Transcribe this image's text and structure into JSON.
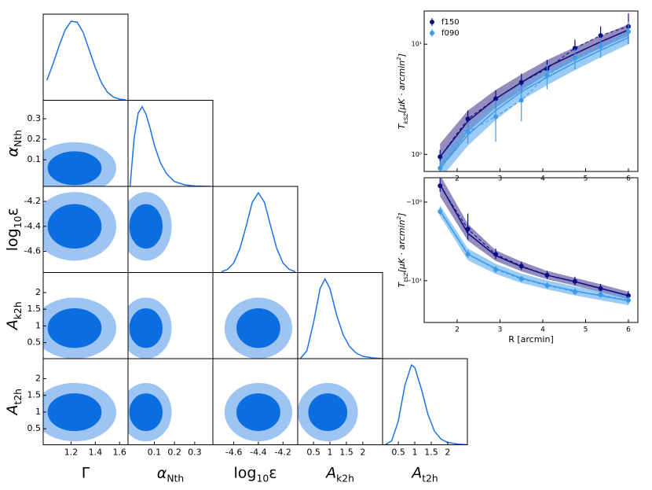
{
  "chart_data": [
    {
      "type": "corner",
      "line_color": "#1a73e8",
      "inner_color": "#0a6de0",
      "outer_color": "#9dc4f2",
      "params": [
        {
          "label": [
            {
              "text": "Γ"
            }
          ],
          "range": [
            0.97,
            1.67
          ],
          "ticks": [
            1.2,
            1.4,
            1.6
          ],
          "x": [
            1.0,
            1.05,
            1.1,
            1.15,
            1.2,
            1.25,
            1.3,
            1.35,
            1.4,
            1.45,
            1.5,
            1.55,
            1.6,
            1.65
          ],
          "values": [
            0.25,
            0.45,
            0.68,
            0.88,
            0.99,
            0.98,
            0.85,
            0.63,
            0.41,
            0.22,
            0.1,
            0.04,
            0.015,
            0.005
          ]
        },
        {
          "label": [
            {
              "text": "α"
            },
            {
              "text": "Nth",
              "sub": true
            }
          ],
          "range": [
            -0.03,
            0.39
          ],
          "ticks": [
            0.1,
            0.2,
            0.3
          ],
          "x": [
            -0.02,
            0,
            0.02,
            0.04,
            0.06,
            0.08,
            0.1,
            0.13,
            0.16,
            0.2,
            0.25,
            0.3,
            0.38
          ],
          "values": [
            0,
            0.6,
            0.92,
            1.0,
            0.9,
            0.72,
            0.52,
            0.3,
            0.16,
            0.06,
            0.02,
            0.005,
            0
          ]
        },
        {
          "label": [
            {
              "text": "log"
            },
            {
              "text": "10",
              "sub": true
            },
            {
              "text": "ε"
            }
          ],
          "range": [
            -4.77,
            -4.08
          ],
          "ticks": [
            -4.6,
            -4.4,
            -4.2
          ],
          "x": [
            -4.7,
            -4.65,
            -4.6,
            -4.55,
            -4.5,
            -4.45,
            -4.4,
            -4.35,
            -4.3,
            -4.25,
            -4.2,
            -4.15,
            -4.1
          ],
          "values": [
            0.01,
            0.04,
            0.12,
            0.3,
            0.58,
            0.88,
            1.0,
            0.88,
            0.58,
            0.3,
            0.12,
            0.04,
            0.01
          ]
        },
        {
          "label": [
            {
              "text": "A"
            },
            {
              "text": "k2h",
              "sub": true
            }
          ],
          "range": [
            0.02,
            2.6
          ],
          "ticks": [
            0.5,
            1.0,
            1.5,
            2.0
          ],
          "x": [
            0.1,
            0.3,
            0.5,
            0.7,
            0.85,
            1.0,
            1.2,
            1.4,
            1.6,
            1.8,
            2.0,
            2.3,
            2.6
          ],
          "values": [
            0,
            0.1,
            0.45,
            0.88,
            1.0,
            0.88,
            0.55,
            0.3,
            0.15,
            0.07,
            0.03,
            0.01,
            0
          ]
        },
        {
          "label": [
            {
              "text": "A"
            },
            {
              "text": "t2h",
              "sub": true
            }
          ],
          "range": [
            0.02,
            2.6
          ],
          "ticks": [
            0.5,
            1.0,
            1.5,
            2.0
          ],
          "x": [
            0.1,
            0.3,
            0.5,
            0.7,
            0.9,
            1.0,
            1.2,
            1.4,
            1.6,
            1.8,
            2.0,
            2.3,
            2.6
          ],
          "values": [
            0,
            0.05,
            0.3,
            0.75,
            1.0,
            0.97,
            0.7,
            0.38,
            0.17,
            0.07,
            0.03,
            0.01,
            0
          ]
        }
      ]
    },
    {
      "type": "errorbar",
      "yscale": "log",
      "legend": "upper left",
      "ylabel": [
        {
          "text": "T"
        },
        {
          "text": "kSZ",
          "sub": true
        },
        {
          "text": "[μK · arcmin"
        },
        {
          "text": "2",
          "sup": true
        },
        {
          "text": "]"
        }
      ],
      "xlim": [
        1.23,
        6.22
      ],
      "xticks": [
        2,
        3,
        4,
        5,
        6
      ],
      "ylim": [
        0.7,
        20
      ],
      "yticks": [
        {
          "value": 1,
          "label": "10⁰"
        },
        {
          "value": 10,
          "label": "10¹"
        }
      ],
      "x": [
        1.6,
        2.25,
        2.9,
        3.5,
        4.1,
        4.75,
        5.35,
        6.0
      ],
      "series": [
        {
          "name": "f150",
          "color": "#0b0b86",
          "band_color": "#4b3f8f",
          "values": [
            0.95,
            2.1,
            3.2,
            4.5,
            6.0,
            9.2,
            12,
            14.5
          ],
          "errors": [
            0.15,
            0.4,
            0.6,
            0.9,
            1.2,
            1.8,
            2.5,
            4.5
          ],
          "model": [
            0.95,
            2.0,
            3.2,
            4.5,
            6.2,
            8.2,
            10.5,
            13.5
          ],
          "band_low": [
            0.72,
            1.6,
            2.65,
            3.8,
            5.3,
            7.1,
            9.2,
            11.9
          ],
          "band_high": [
            1.25,
            2.5,
            3.85,
            5.3,
            7.2,
            9.4,
            11.9,
            15.2
          ]
        },
        {
          "name": "f090",
          "color": "#3a9be8",
          "band_color": "#5aa8f0",
          "values": [
            0.75,
            1.6,
            2.2,
            3.1,
            5.2,
            7.5,
            9.5,
            13
          ],
          "errors": [
            0.12,
            0.35,
            0.9,
            1.1,
            1.3,
            1.6,
            2.0,
            3.0
          ],
          "model": [
            0.75,
            1.5,
            2.5,
            3.7,
            5.0,
            6.8,
            8.8,
            11.5
          ],
          "band_low": [
            0.6,
            1.2,
            2.05,
            3.1,
            4.25,
            5.8,
            7.6,
            10
          ],
          "band_high": [
            0.95,
            1.85,
            3.0,
            4.35,
            5.8,
            7.8,
            10,
            13
          ]
        }
      ]
    },
    {
      "type": "errorbar",
      "yscale": "neglog",
      "xlabel": "R [arcmin]",
      "ylabel": [
        {
          "text": "T"
        },
        {
          "text": "tSZ",
          "sub": true
        },
        {
          "text": "[μK · arcmin"
        },
        {
          "text": "2",
          "sup": true
        },
        {
          "text": "]"
        }
      ],
      "xlim": [
        1.23,
        6.22
      ],
      "xticks": [
        2,
        3,
        4,
        5,
        6
      ],
      "ylim": [
        -34,
        -0.49
      ],
      "yticks": [
        {
          "value": -1,
          "label": "−10⁰"
        },
        {
          "value": -10,
          "label": "−10¹"
        }
      ],
      "x": [
        1.6,
        2.25,
        2.9,
        3.5,
        4.1,
        4.75,
        5.35,
        6.0
      ],
      "series": [
        {
          "name": "f150",
          "color": "#0b0b86",
          "band_color": "#4b3f8f",
          "values": [
            -0.62,
            -2.2,
            -4.6,
            -6.5,
            -8.5,
            -10.2,
            -12.6,
            -15.5
          ],
          "errors": [
            0.12,
            0.8,
            0.7,
            0.8,
            1.0,
            1.3,
            1.6,
            2.0
          ],
          "model": [
            -0.6,
            -2.5,
            -4.8,
            -6.6,
            -8.5,
            -10.3,
            -12.5,
            -15.5
          ],
          "band_low": [
            -0.85,
            -3.1,
            -5.6,
            -7.6,
            -9.6,
            -11.6,
            -14,
            -17.3
          ],
          "band_high": [
            -0.45,
            -1.9,
            -4.1,
            -5.7,
            -7.5,
            -9.2,
            -11.1,
            -13.8
          ]
        },
        {
          "name": "f090",
          "color": "#3a9be8",
          "band_color": "#5aa8f0",
          "values": [
            -1.32,
            -4.6,
            -7.2,
            -9.5,
            -11.5,
            -13.8,
            -15.1,
            -17.8
          ],
          "errors": [
            0.15,
            0.5,
            0.7,
            0.8,
            1.0,
            1.2,
            1.5,
            2.0
          ],
          "model": [
            -1.3,
            -4.6,
            -7.0,
            -9.3,
            -11.3,
            -13.5,
            -15.5,
            -18
          ],
          "band_low": [
            -1.5,
            -5.5,
            -8.2,
            -10.7,
            -12.9,
            -15.4,
            -17.7,
            -20.5
          ],
          "band_high": [
            -1.1,
            -3.9,
            -6.1,
            -8.1,
            -9.9,
            -11.8,
            -13.6,
            -15.8
          ]
        }
      ]
    }
  ]
}
